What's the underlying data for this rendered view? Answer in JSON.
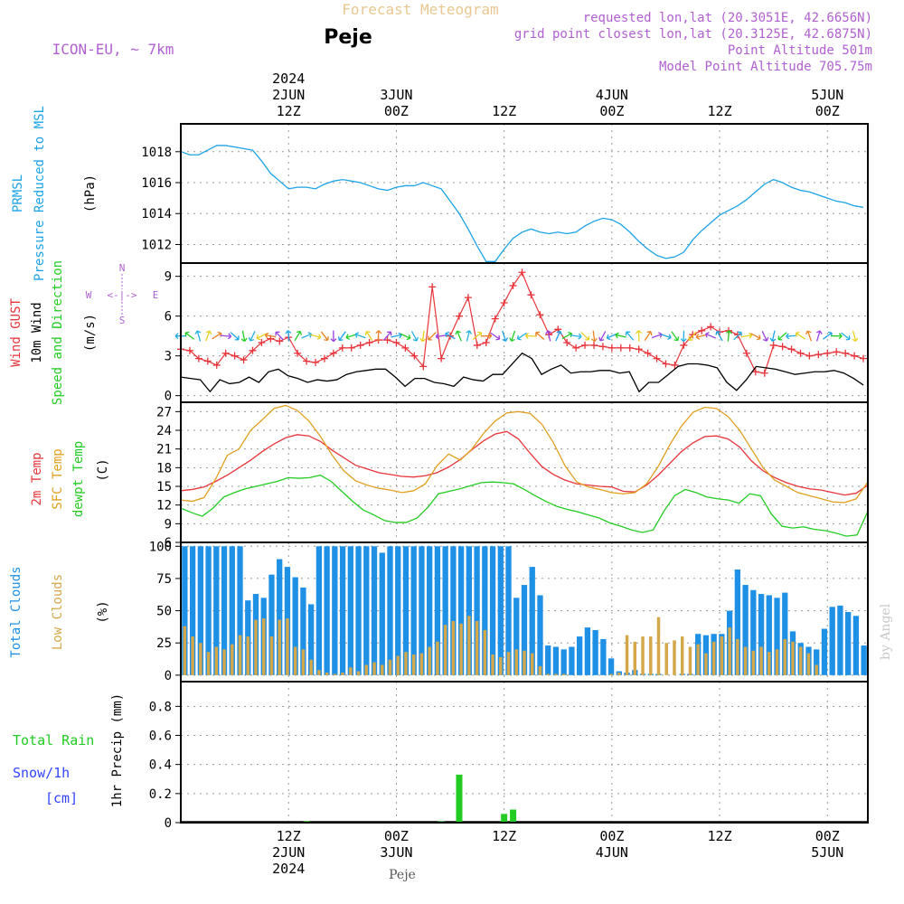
{
  "header": {
    "model": "ICON-EU, ~ 7km",
    "product": "Forecast Meteogram",
    "location": "Peje",
    "requested": "requested lon,lat (20.3051E, 42.6656N)",
    "grid_point": "grid point closest lon,lat (20.3125E, 42.6875N)",
    "point_alt": "Point Altitude 501m",
    "model_alt": "Model Point Altitude 705.75m",
    "watermark": "by Angel",
    "footer": "Peje"
  },
  "colors": {
    "pressure": "#1ba3e6",
    "gust": "#e8343a",
    "wind": "#000000",
    "temp2m": "#e8343a",
    "sfc": "#e0a020",
    "dewpt": "#22cc22",
    "total_cloud": "#1e90e6",
    "low_cloud": "#d4a84a",
    "rain": "#22cc22",
    "snow": "#3344ff",
    "arrow": "#7b2fbe"
  },
  "labels": {
    "pressure": [
      "PRMSL",
      "Pressure Reduced to MSL",
      "(hPa)"
    ],
    "wind_gust": "Wind GUST",
    "wind_10m": "10m Wind",
    "wind_dir": "Speed and Direction",
    "wind_unit": "(m/s)",
    "compass_n": "N",
    "compass_s": "S",
    "compass_w": "W",
    "compass_e": "E",
    "compass_mid": "<-|->",
    "temp2m": "2m Temp",
    "sfc": "SFC Temp",
    "dewpt": "dewpt Temp",
    "temp_unit": "(C)",
    "total_clouds": "Total Clouds",
    "low_clouds": "Low Clouds",
    "cloud_unit": "(%)",
    "total_rain": "Total  Rain",
    "snow": "Snow/1h",
    "snow_unit": "[cm]",
    "precip": "1hr Precip (mm)"
  },
  "time_axis": {
    "top": [
      {
        "h": 12,
        "lines": [
          "2024",
          "2JUN",
          "12Z"
        ]
      },
      {
        "h": 24,
        "lines": [
          "3JUN",
          "00Z"
        ]
      },
      {
        "h": 36,
        "lines": [
          "12Z"
        ]
      },
      {
        "h": 48,
        "lines": [
          "4JUN",
          "00Z"
        ]
      },
      {
        "h": 60,
        "lines": [
          "12Z"
        ]
      },
      {
        "h": 72,
        "lines": [
          "5JUN",
          "00Z"
        ]
      }
    ],
    "bottom": [
      {
        "h": 12,
        "lines": [
          "12Z",
          "2JUN",
          "2024"
        ]
      },
      {
        "h": 24,
        "lines": [
          "00Z",
          "3JUN"
        ]
      },
      {
        "h": 36,
        "lines": [
          "12Z"
        ]
      },
      {
        "h": 48,
        "lines": [
          "00Z",
          "4JUN"
        ]
      },
      {
        "h": 60,
        "lines": [
          "12Z"
        ]
      },
      {
        "h": 72,
        "lines": [
          "00Z",
          "5JUN"
        ]
      }
    ]
  },
  "chart_data": [
    {
      "type": "line",
      "title": "PRMSL Pressure Reduced to MSL",
      "ylabel": "hPa",
      "ylim": [
        1010.8,
        1019.8
      ],
      "yticks": [
        1012,
        1014,
        1016,
        1018
      ],
      "x_range_hours": [
        0,
        76.5
      ],
      "series": [
        {
          "name": "PRMSL",
          "x": [
            0,
            1,
            2,
            3,
            4,
            5,
            6,
            7,
            8,
            9,
            10,
            11,
            12,
            13,
            14,
            15,
            16,
            17,
            18,
            19,
            20,
            21,
            22,
            23,
            24,
            25,
            26,
            27,
            28,
            29,
            30,
            31,
            32,
            33,
            34,
            35,
            36,
            37,
            38,
            39,
            40,
            41,
            42,
            43,
            44,
            45,
            46,
            47,
            48,
            49,
            50,
            51,
            52,
            53,
            54,
            55,
            56,
            57,
            58,
            59,
            60,
            61,
            62,
            63,
            64,
            65,
            66,
            67,
            68,
            69,
            70,
            71,
            72,
            73,
            74,
            75,
            76
          ],
          "values": [
            1018.0,
            1017.8,
            1017.8,
            1018.1,
            1018.4,
            1018.4,
            1018.3,
            1018.2,
            1018.1,
            1017.4,
            1016.6,
            1016.1,
            1015.6,
            1015.7,
            1015.7,
            1015.6,
            1015.9,
            1016.1,
            1016.2,
            1016.1,
            1016.0,
            1015.8,
            1015.6,
            1015.5,
            1015.7,
            1015.8,
            1015.8,
            1016.0,
            1015.8,
            1015.6,
            1014.8,
            1014.0,
            1013.0,
            1011.9,
            1010.9,
            1010.9,
            1011.7,
            1012.4,
            1012.8,
            1013.0,
            1012.8,
            1012.7,
            1012.8,
            1012.7,
            1012.8,
            1013.2,
            1013.5,
            1013.7,
            1013.6,
            1013.3,
            1012.8,
            1012.2,
            1011.7,
            1011.3,
            1011.1,
            1011.2,
            1011.5,
            1012.3,
            1012.9,
            1013.4,
            1013.9,
            1014.2,
            1014.5,
            1014.9,
            1015.4,
            1015.9,
            1016.2,
            1016.0,
            1015.7,
            1015.5,
            1015.4,
            1015.2,
            1015.0,
            1014.8,
            1014.7,
            1014.5,
            1014.4
          ]
        }
      ]
    },
    {
      "type": "line",
      "title": "Wind GUST / 10m Wind Speed and Direction",
      "ylabel": "m/s",
      "ylim": [
        -0.5,
        10
      ],
      "yticks": [
        0,
        3,
        6,
        9
      ],
      "series": [
        {
          "name": "Wind GUST",
          "values": [
            3.5,
            3.4,
            2.8,
            2.6,
            2.3,
            3.2,
            3.0,
            2.7,
            3.4,
            4.0,
            4.3,
            4.1,
            4.4,
            3.2,
            2.6,
            2.5,
            2.8,
            3.2,
            3.6,
            3.6,
            3.8,
            4.0,
            4.2,
            4.2,
            4.0,
            3.6,
            3.0,
            2.2,
            8.2,
            2.8,
            4.5,
            6.0,
            7.4,
            3.8,
            4.0,
            5.8,
            7.0,
            8.3,
            9.3,
            7.6,
            6.1,
            4.6,
            5.0,
            4.0,
            3.6,
            3.8,
            3.8,
            3.7,
            3.6,
            3.6,
            3.6,
            3.5,
            3.2,
            2.8,
            2.4,
            2.3,
            3.8,
            4.6,
            4.9,
            5.2,
            4.8,
            4.9,
            4.6,
            3.2,
            1.8,
            1.7,
            3.8,
            3.7,
            3.5,
            3.2,
            3.0,
            3.1,
            3.2,
            3.3,
            3.2,
            3.0,
            2.8
          ]
        },
        {
          "name": "10m Wind",
          "values": [
            1.4,
            1.3,
            1.2,
            0.3,
            1.2,
            0.9,
            1.0,
            1.4,
            1.0,
            1.8,
            2.0,
            1.5,
            1.3,
            1.0,
            1.2,
            1.1,
            1.2,
            1.6,
            1.8,
            1.9,
            2.0,
            2.0,
            1.4,
            0.7,
            1.3,
            1.3,
            1.0,
            0.9,
            0.7,
            1.4,
            1.2,
            1.1,
            1.6,
            1.6,
            2.4,
            3.2,
            2.8,
            1.6,
            2.0,
            2.3,
            1.7,
            1.8,
            1.8,
            1.9,
            1.9,
            1.7,
            1.8,
            0.3,
            1.0,
            1.0,
            1.6,
            2.2,
            2.4,
            2.4,
            2.3,
            2.1,
            1.0,
            0.4,
            1.2,
            2.2,
            2.1,
            2.0,
            1.8,
            1.6,
            1.7,
            1.8,
            1.8,
            1.9,
            1.7,
            1.3,
            0.8
          ]
        }
      ]
    },
    {
      "type": "line",
      "title": "2m Temp / SFC Temp / dewpt Temp",
      "ylabel": "C",
      "ylim": [
        6,
        28.5
      ],
      "yticks": [
        6,
        9,
        12,
        15,
        18,
        21,
        24,
        27
      ],
      "series": [
        {
          "name": "2m Temp",
          "values": [
            14.3,
            14.5,
            14.9,
            15.8,
            16.8,
            18.0,
            19.2,
            20.6,
            21.8,
            22.8,
            23.3,
            23.1,
            22.2,
            20.8,
            19.6,
            18.4,
            17.8,
            17.2,
            16.9,
            16.6,
            16.5,
            16.7,
            17.2,
            18.1,
            19.3,
            20.9,
            22.3,
            23.4,
            23.8,
            22.6,
            20.3,
            18.2,
            16.9,
            16.0,
            15.4,
            15.2,
            15.0,
            14.9,
            14.2,
            14.1,
            15.2,
            16.8,
            18.7,
            20.6,
            22.0,
            23.0,
            23.1,
            22.6,
            21.3,
            19.1,
            17.5,
            16.4,
            15.6,
            15.0,
            14.6,
            14.4,
            14.0,
            13.6,
            13.9,
            15.2
          ]
        },
        {
          "name": "SFC Temp",
          "values": [
            12.8,
            12.6,
            13.2,
            16.2,
            20.0,
            21.0,
            24.0,
            25.7,
            27.5,
            28.0,
            27.2,
            25.5,
            23.0,
            20.0,
            17.5,
            15.9,
            15.2,
            14.7,
            14.4,
            14.0,
            14.3,
            15.4,
            18.3,
            20.2,
            19.2,
            21.0,
            23.5,
            25.5,
            26.8,
            27.0,
            26.7,
            25.0,
            22.0,
            18.3,
            15.7,
            14.9,
            14.5,
            14.0,
            13.8,
            14.0,
            15.4,
            18.2,
            21.7,
            24.7,
            26.9,
            27.7,
            27.5,
            26.2,
            24.0,
            21.0,
            18.0,
            16.0,
            15.0,
            14.0,
            13.5,
            13.0,
            12.5,
            12.4,
            13.0,
            15.7
          ]
        },
        {
          "name": "dewpt Temp",
          "values": [
            11.5,
            10.8,
            10.2,
            11.5,
            13.3,
            14.0,
            14.6,
            15.0,
            15.4,
            15.8,
            16.4,
            16.3,
            16.4,
            16.8,
            15.8,
            14.2,
            12.6,
            11.2,
            10.4,
            9.5,
            9.2,
            9.2,
            9.9,
            11.6,
            13.8,
            14.2,
            14.6,
            15.1,
            15.6,
            15.7,
            15.6,
            15.4,
            14.5,
            13.5,
            12.6,
            11.8,
            11.3,
            10.9,
            10.4,
            9.9,
            9.1,
            8.6,
            8.0,
            7.6,
            8.0,
            11.0,
            13.5,
            14.5,
            14.0,
            13.3,
            13.0,
            12.8,
            12.3,
            13.8,
            13.5,
            10.6,
            8.6,
            8.3,
            8.5,
            8.1,
            7.9,
            7.5,
            7.0,
            7.2,
            11.0
          ]
        }
      ]
    },
    {
      "type": "bar",
      "title": "Total Clouds / Low Clouds",
      "ylabel": "%",
      "ylim": [
        -5,
        103
      ],
      "yticks": [
        0,
        25,
        50,
        75,
        100
      ],
      "series": [
        {
          "name": "Total Clouds",
          "values": [
            100,
            100,
            100,
            100,
            100,
            100,
            100,
            100,
            58,
            63,
            60,
            78,
            90,
            84,
            76,
            68,
            55,
            100,
            100,
            100,
            100,
            100,
            100,
            100,
            100,
            95,
            100,
            100,
            100,
            100,
            100,
            100,
            100,
            100,
            100,
            100,
            100,
            100,
            100,
            100,
            100,
            100,
            60,
            70,
            84,
            62,
            23,
            22,
            20,
            22,
            30,
            37,
            35,
            28,
            13,
            3,
            2,
            4,
            1,
            1,
            1,
            0,
            0,
            1,
            1,
            32,
            31,
            32,
            32,
            50,
            82,
            70,
            66,
            63,
            62,
            60,
            64,
            34,
            25,
            22,
            20,
            36,
            53,
            54,
            49,
            46,
            23
          ]
        },
        {
          "name": "Low Clouds",
          "values": [
            38,
            30,
            25,
            18,
            22,
            20,
            24,
            31,
            30,
            43,
            44,
            30,
            43,
            44,
            22,
            20,
            12,
            4,
            2,
            1,
            2,
            6,
            3,
            8,
            10,
            8,
            12,
            15,
            18,
            16,
            17,
            22,
            26,
            39,
            42,
            40,
            46,
            42,
            35,
            16,
            14,
            18,
            20,
            19,
            17,
            7,
            1,
            1,
            1,
            0,
            0,
            0,
            0,
            0,
            1,
            2,
            31,
            26,
            30,
            30,
            45,
            25,
            27,
            30,
            22,
            24,
            17,
            26,
            30,
            37,
            28,
            22,
            19,
            22,
            18,
            20,
            28,
            26,
            22,
            17,
            8
          ]
        }
      ]
    },
    {
      "type": "bar",
      "title": "Total Rain / Snow 1hr Precip",
      "ylabel": "1hr Precip (mm)",
      "ylim": [
        0,
        0.97
      ],
      "yticks": [
        0,
        0.2,
        0.4,
        0.6,
        0.8
      ],
      "series": [
        {
          "name": "Total Rain",
          "x": [
            14,
            29,
            31,
            36,
            37
          ],
          "values": [
            0.01,
            0.01,
            0.33,
            0.06,
            0.09
          ]
        },
        {
          "name": "Snow/1h",
          "x": [],
          "values": []
        }
      ]
    }
  ]
}
